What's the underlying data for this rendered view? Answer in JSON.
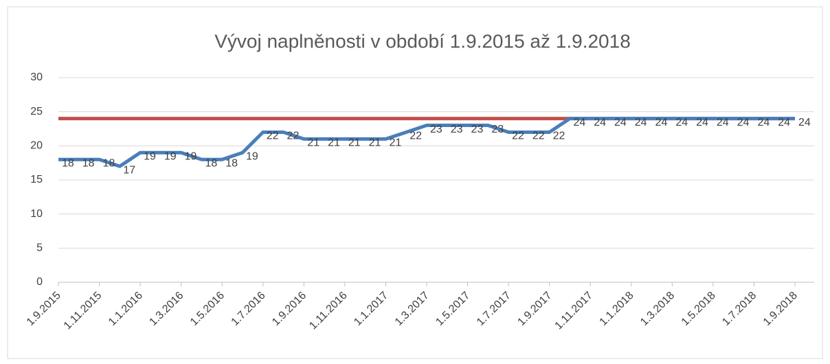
{
  "chart_data": {
    "type": "line",
    "title": "Vývoj naplněnosti v období 1.9.2015 až 1.9.2018",
    "categories": [
      "1.9.2015",
      null,
      "1.11.2015",
      null,
      "1.1.2016",
      null,
      "1.3.2016",
      null,
      "1.5.2016",
      null,
      "1.7.2016",
      null,
      "1.9.2016",
      null,
      "1.11.2016",
      null,
      "1.1.2017",
      null,
      "1.3.2017",
      null,
      "1.5.2017",
      null,
      "1.7.2017",
      null,
      "1.9.2017",
      null,
      "1.11.2017",
      null,
      "1.1.2018",
      null,
      "1.3.2018",
      null,
      "1.5.2018",
      null,
      "1.7.2018",
      null,
      "1.9.2018"
    ],
    "series": [
      {
        "color": "#4a7ebb",
        "data_labels": true,
        "values": [
          18,
          18,
          18,
          17,
          19,
          19,
          19,
          18,
          18,
          19,
          22,
          22,
          21,
          21,
          21,
          21,
          21,
          22,
          23,
          23,
          23,
          23,
          22,
          22,
          22,
          24,
          24,
          24,
          24,
          24,
          24,
          24,
          24,
          24,
          24,
          24,
          24
        ]
      },
      {
        "color": "#c0504d",
        "data_labels": false,
        "values": [
          24,
          24,
          24,
          24,
          24,
          24,
          24,
          24,
          24,
          24,
          24,
          24,
          24,
          24,
          24,
          24,
          24,
          24,
          24,
          24,
          24,
          24,
          24,
          24,
          24,
          24,
          24,
          24,
          24,
          24,
          24,
          24,
          24,
          24,
          24,
          24,
          24
        ]
      }
    ],
    "ylim": [
      0,
      30
    ],
    "yticks": [
      0,
      5,
      10,
      15,
      20,
      25,
      30
    ],
    "grid": true
  }
}
